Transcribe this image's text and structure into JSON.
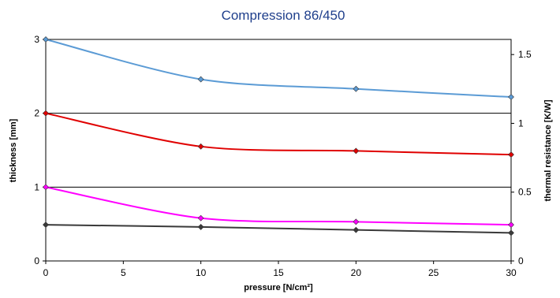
{
  "chart_data": {
    "type": "line",
    "title": "Compression 86/450",
    "xlabel": "pressure [N/cm²]",
    "ylabel": "thickness [mm]",
    "y2label": "thermal resistance [K/W]",
    "xlim": [
      0,
      30
    ],
    "ylim": [
      0,
      3
    ],
    "y2lim": [
      0,
      1.61
    ],
    "xticks": [
      "0",
      "5",
      "10",
      "15",
      "20",
      "25",
      "30"
    ],
    "yticks": [
      "0",
      "1",
      "2",
      "3"
    ],
    "y2ticks": [
      "0",
      "0.5",
      "1",
      "1.5"
    ],
    "grid": "horizontal",
    "x": [
      0,
      10,
      20,
      30
    ],
    "series": [
      {
        "color": "#5b9bd5",
        "axis": "left",
        "values": [
          3.0,
          2.46,
          2.33,
          2.22
        ]
      },
      {
        "color": "#e00000",
        "axis": "left",
        "values": [
          2.0,
          1.55,
          1.49,
          1.44
        ]
      },
      {
        "color": "#ff00ff",
        "axis": "left",
        "values": [
          1.0,
          0.58,
          0.53,
          0.49
        ]
      },
      {
        "color": "#3a3a3a",
        "axis": "left",
        "values": [
          0.49,
          0.46,
          0.42,
          0.38
        ]
      }
    ]
  }
}
